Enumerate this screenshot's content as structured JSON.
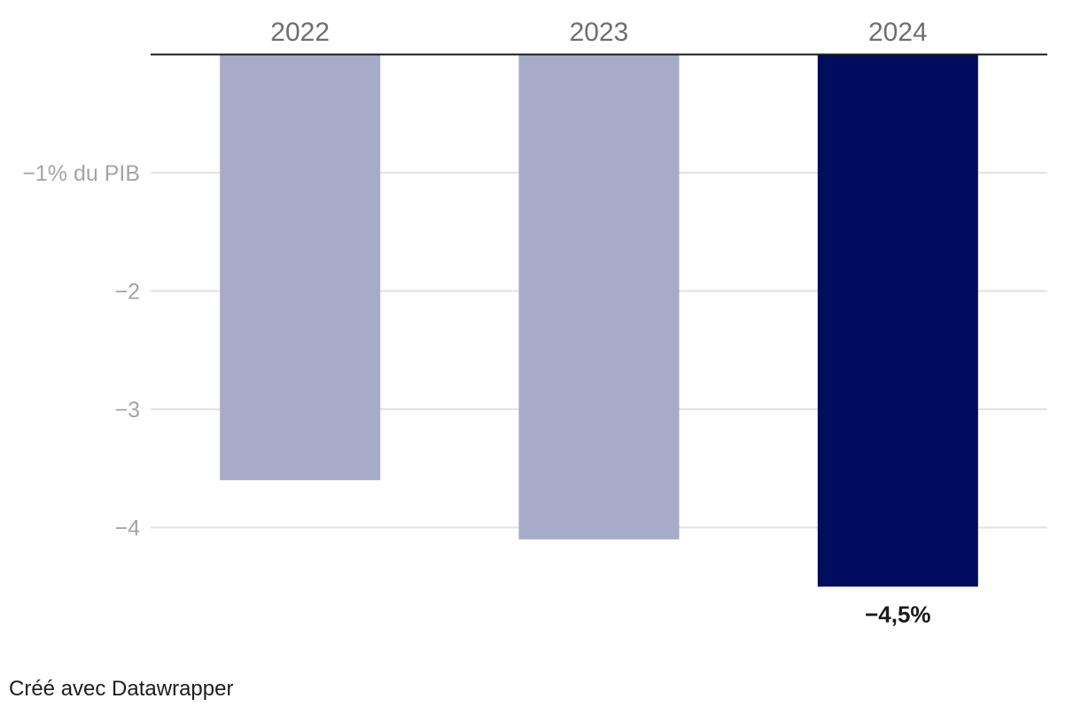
{
  "chart_data": {
    "type": "bar",
    "categories": [
      "2022",
      "2023",
      "2024"
    ],
    "values": [
      -3.6,
      -4.1,
      -4.5
    ],
    "colors": [
      "#a7aac8",
      "#a7aac8",
      "#000c5e"
    ],
    "y_ticks": [
      {
        "value": -1,
        "label": "−1% du PIB"
      },
      {
        "value": -2,
        "label": "−2"
      },
      {
        "value": -3,
        "label": "−3"
      },
      {
        "value": -4,
        "label": "−4"
      }
    ],
    "ylim": [
      -4.5,
      0
    ],
    "data_labels": [
      {
        "category": "2024",
        "text": "−4,5%"
      }
    ],
    "grid": true
  },
  "footer": {
    "credit": "Créé avec Datawrapper"
  }
}
